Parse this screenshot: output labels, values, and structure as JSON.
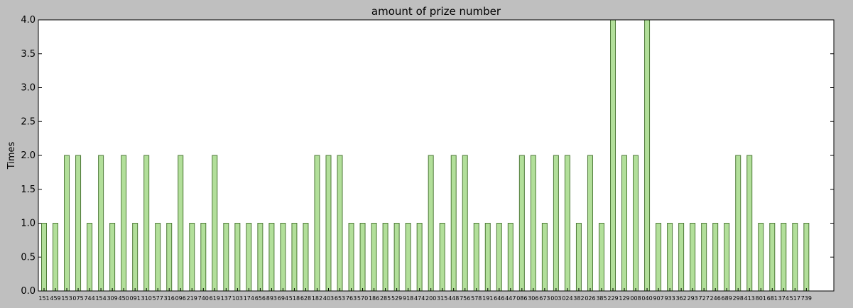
{
  "chart_data": {
    "type": "bar",
    "title": "amount of prize number",
    "xlabel": "",
    "ylabel": "Times",
    "ylim": [
      0,
      4.0
    ],
    "yticks": [
      "0.0",
      "0.5",
      "1.0",
      "1.5",
      "2.0",
      "2.5",
      "3.0",
      "3.5",
      "4.0"
    ],
    "grid": false,
    "bar_color": "#b2df9a",
    "bar_edge_color": "#4e7a38",
    "categories": [
      "151",
      "459",
      "153",
      "075",
      "744",
      "154",
      "309",
      "450",
      "091",
      "310",
      "577",
      "316",
      "096",
      "219",
      "740",
      "619",
      "137",
      "103",
      "174",
      "656",
      "893",
      "694",
      "518",
      "628",
      "182",
      "403",
      "653",
      "763",
      "570",
      "186",
      "285",
      "529",
      "918",
      "474",
      "200",
      "315",
      "448",
      "756",
      "578",
      "191",
      "646",
      "447",
      "086",
      "306",
      "673",
      "003",
      "024",
      "382",
      "026",
      "385",
      "229",
      "129",
      "008",
      "040",
      "907",
      "933",
      "362",
      "293",
      "727",
      "246",
      "689",
      "298",
      "413",
      "801",
      "681",
      "374",
      "517",
      "739"
    ],
    "values": [
      1,
      1,
      2,
      2,
      1,
      2,
      1,
      2,
      1,
      2,
      1,
      1,
      2,
      1,
      1,
      2,
      1,
      1,
      1,
      1,
      1,
      1,
      1,
      1,
      2,
      2,
      2,
      1,
      1,
      1,
      1,
      1,
      1,
      1,
      2,
      1,
      2,
      2,
      1,
      1,
      1,
      1,
      2,
      2,
      1,
      2,
      2,
      1,
      2,
      1,
      4,
      2,
      2,
      4,
      1,
      1,
      1,
      1,
      1,
      1,
      1,
      2,
      2,
      1,
      1,
      1,
      1,
      1
    ]
  }
}
